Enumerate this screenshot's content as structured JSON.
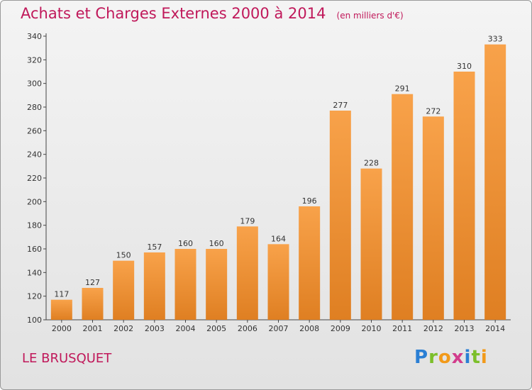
{
  "title": "Achats et Charges Externes 2000 à 2014",
  "unit_label": "(en milliers d'€)",
  "place_name": "LE BRUSQUET",
  "logo_text": "Proxiti",
  "colors": {
    "title": "#c0185a",
    "bar_light": "#f8a24a",
    "bar_dark": "#df7f22",
    "axis": "#444444"
  },
  "chart_data": {
    "type": "bar",
    "title": "Achats et Charges Externes 2000 à 2014",
    "xlabel": "",
    "ylabel": "",
    "categories": [
      "2000",
      "2001",
      "2002",
      "2003",
      "2004",
      "2005",
      "2006",
      "2007",
      "2008",
      "2009",
      "2010",
      "2011",
      "2012",
      "2013",
      "2014"
    ],
    "values": [
      117,
      127,
      150,
      157,
      160,
      160,
      179,
      164,
      196,
      277,
      228,
      291,
      272,
      310,
      333
    ],
    "ylim": [
      100,
      340
    ],
    "yticks": [
      100,
      120,
      140,
      160,
      180,
      200,
      220,
      240,
      260,
      280,
      300,
      320,
      340
    ],
    "grid": false,
    "legend": "none"
  }
}
